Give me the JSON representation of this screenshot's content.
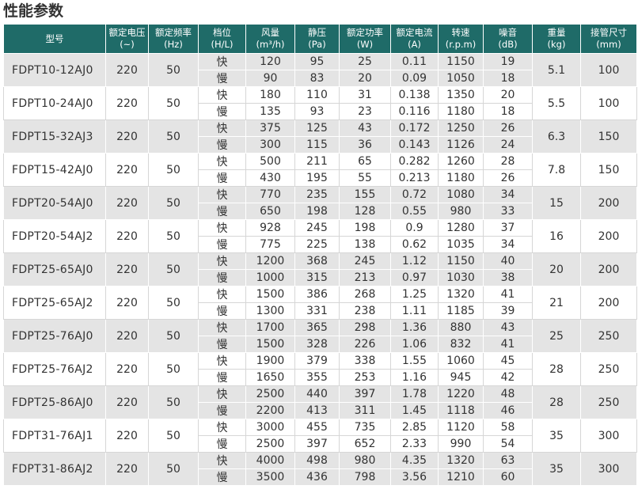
{
  "title": "性能参数",
  "table": {
    "header": [
      {
        "label": "型号"
      },
      {
        "label": "额定电压",
        "unit": "(~)"
      },
      {
        "label": "额定频率",
        "unit": "(Hz)"
      },
      {
        "label": "档位",
        "unit": "(H/L)"
      },
      {
        "label": "风量",
        "unit": "(m³/h)"
      },
      {
        "label": "静压",
        "unit": "(Pa)"
      },
      {
        "label": "额定功率",
        "unit": "(W)"
      },
      {
        "label": "额定电流",
        "unit": "(A)"
      },
      {
        "label": "转速",
        "unit": "(r.p.m)"
      },
      {
        "label": "噪音",
        "unit": "(dB)"
      },
      {
        "label": "重量",
        "unit": "(kg)"
      },
      {
        "label": "接管尺寸",
        "unit": "(mm)"
      }
    ],
    "rows": [
      {
        "model": "FDPT10-12AJ0",
        "voltage": "220",
        "frequency": "50",
        "weight": "5.1",
        "pipe": "100",
        "speeds": [
          [
            "快",
            "120",
            "95",
            "25",
            "0.11",
            "1150",
            "19"
          ],
          [
            "慢",
            "90",
            "83",
            "20",
            "0.09",
            "1050",
            "18"
          ]
        ]
      },
      {
        "model": "FDPT10-24AJ0",
        "voltage": "220",
        "frequency": "50",
        "weight": "5.5",
        "pipe": "100",
        "speeds": [
          [
            "快",
            "180",
            "110",
            "31",
            "0.138",
            "1350",
            "20"
          ],
          [
            "慢",
            "135",
            "93",
            "23",
            "0.116",
            "1180",
            "18"
          ]
        ]
      },
      {
        "model": "FDPT15-32AJ3",
        "voltage": "220",
        "frequency": "50",
        "weight": "6.3",
        "pipe": "150",
        "speeds": [
          [
            "快",
            "375",
            "125",
            "43",
            "0.172",
            "1250",
            "26"
          ],
          [
            "慢",
            "300",
            "115",
            "36",
            "0.143",
            "1126",
            "24"
          ]
        ]
      },
      {
        "model": "FDPT15-42AJ0",
        "voltage": "220",
        "frequency": "50",
        "weight": "7.8",
        "pipe": "150",
        "speeds": [
          [
            "快",
            "500",
            "211",
            "65",
            "0.282",
            "1260",
            "28"
          ],
          [
            "慢",
            "430",
            "195",
            "55",
            "0.213",
            "1180",
            "26"
          ]
        ]
      },
      {
        "model": "FDPT20-54AJ0",
        "voltage": "220",
        "frequency": "50",
        "weight": "15",
        "pipe": "200",
        "speeds": [
          [
            "快",
            "770",
            "235",
            "155",
            "0.72",
            "1080",
            "34"
          ],
          [
            "慢",
            "650",
            "198",
            "128",
            "0.55",
            "980",
            "33"
          ]
        ]
      },
      {
        "model": "FDPT20-54AJ2",
        "voltage": "220",
        "frequency": "50",
        "weight": "16",
        "pipe": "200",
        "speeds": [
          [
            "快",
            "928",
            "245",
            "198",
            "0.9",
            "1280",
            "37"
          ],
          [
            "慢",
            "775",
            "225",
            "138",
            "0.62",
            "1035",
            "34"
          ]
        ]
      },
      {
        "model": "FDPT25-65AJ0",
        "voltage": "220",
        "frequency": "50",
        "weight": "20",
        "pipe": "200",
        "speeds": [
          [
            "快",
            "1200",
            "368",
            "245",
            "1.12",
            "1150",
            "40"
          ],
          [
            "慢",
            "1000",
            "315",
            "213",
            "0.97",
            "1030",
            "38"
          ]
        ]
      },
      {
        "model": "FDPT25-65AJ2",
        "voltage": "220",
        "frequency": "50",
        "weight": "21",
        "pipe": "200",
        "speeds": [
          [
            "快",
            "1500",
            "386",
            "268",
            "1.25",
            "1320",
            "41"
          ],
          [
            "慢",
            "1300",
            "331",
            "238",
            "1.11",
            "1185",
            "39"
          ]
        ]
      },
      {
        "model": "FDPT25-76AJ0",
        "voltage": "220",
        "frequency": "50",
        "weight": "25",
        "pipe": "250",
        "speeds": [
          [
            "快",
            "1700",
            "365",
            "298",
            "1.36",
            "880",
            "43"
          ],
          [
            "慢",
            "1500",
            "328",
            "226",
            "1.06",
            "832",
            "41"
          ]
        ]
      },
      {
        "model": "FDPT25-76AJ2",
        "voltage": "220",
        "frequency": "50",
        "weight": "28",
        "pipe": "250",
        "speeds": [
          [
            "快",
            "1900",
            "379",
            "338",
            "1.55",
            "1060",
            "45"
          ],
          [
            "慢",
            "1650",
            "355",
            "253",
            "1.16",
            "945",
            "42"
          ]
        ]
      },
      {
        "model": "FDPT25-86AJ0",
        "voltage": "220",
        "frequency": "50",
        "weight": "28",
        "pipe": "250",
        "speeds": [
          [
            "快",
            "2500",
            "440",
            "397",
            "1.78",
            "1220",
            "48"
          ],
          [
            "慢",
            "2200",
            "413",
            "311",
            "1.45",
            "1118",
            "46"
          ]
        ]
      },
      {
        "model": "FDPT31-76AJ1",
        "voltage": "220",
        "frequency": "50",
        "weight": "35",
        "pipe": "300",
        "speeds": [
          [
            "快",
            "3000",
            "455",
            "735",
            "2.85",
            "1120",
            "58"
          ],
          [
            "慢",
            "2500",
            "397",
            "652",
            "2.33",
            "990",
            "54"
          ]
        ]
      },
      {
        "model": "FDPT31-86AJ2",
        "voltage": "220",
        "frequency": "50",
        "weight": "35",
        "pipe": "300",
        "speeds": [
          [
            "快",
            "4000",
            "498",
            "980",
            "4.35",
            "1320",
            "63"
          ],
          [
            "慢",
            "3500",
            "436",
            "798",
            "3.56",
            "1210",
            "60"
          ]
        ]
      }
    ]
  }
}
